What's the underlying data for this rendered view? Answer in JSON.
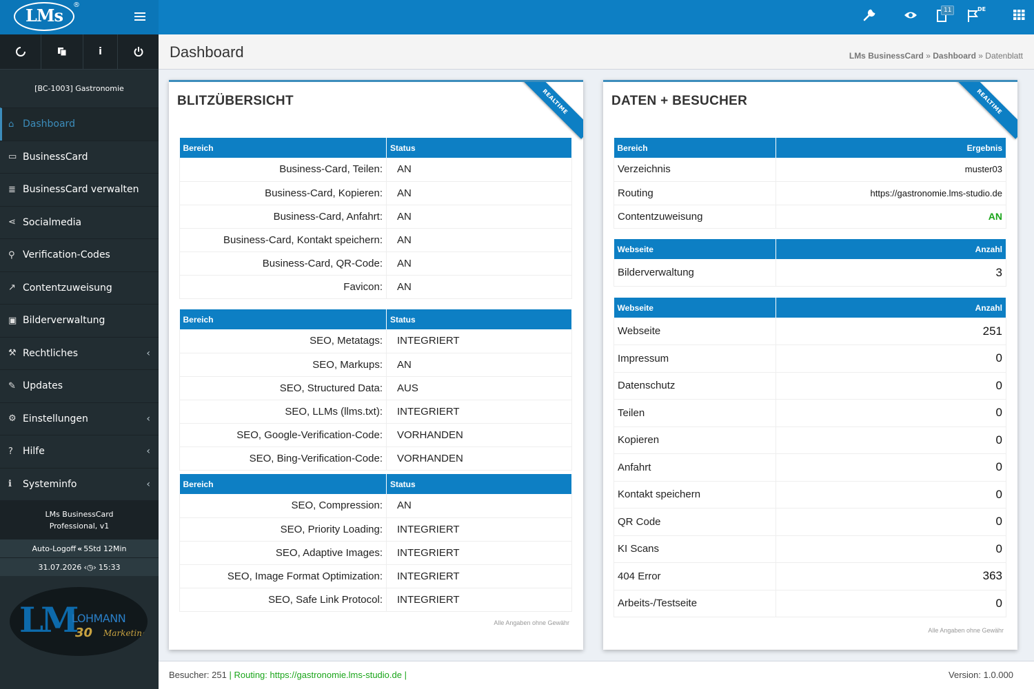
{
  "app": {
    "logo": "LMs",
    "logo_reg": "®",
    "badge_count": "11",
    "lang": "DE"
  },
  "sidebar": {
    "client": "[BC-1003] Gastronomie",
    "menu": [
      {
        "label": "Dashboard",
        "icon": "home-icon"
      },
      {
        "label": "BusinessCard",
        "icon": "id-card-icon"
      },
      {
        "label": "BusinessCard verwalten",
        "icon": "list-icon"
      },
      {
        "label": "Socialmedia",
        "icon": "share-icon"
      },
      {
        "label": "Verification-Codes",
        "icon": "search-icon"
      },
      {
        "label": "Contentzuweisung",
        "icon": "external-link-icon"
      },
      {
        "label": "Bilderverwaltung",
        "icon": "image-icon"
      },
      {
        "label": "Rechtliches",
        "icon": "gavel-icon"
      },
      {
        "label": "Updates",
        "icon": "wrench-icon"
      },
      {
        "label": "Einstellungen",
        "icon": "gears-icon"
      },
      {
        "label": "Hilfe",
        "icon": "question-icon"
      },
      {
        "label": "Systeminfo",
        "icon": "info-icon"
      }
    ],
    "product_line1": "LMs BusinessCard",
    "product_line2": "Professional, v1",
    "autologoff_label": "Auto-Logoff",
    "autologoff_value": "5Std 12Min",
    "date": "31.07.2026",
    "time": "15:33",
    "logo_lm": "LM",
    "logo_lohmann": "LOHMANN",
    "logo_30": "30",
    "logo_marketing": "Marketing"
  },
  "header": {
    "title": "Dashboard",
    "breadcrumb": [
      "LMs BusinessCard",
      "Dashboard",
      "Datenblatt"
    ]
  },
  "left_box": {
    "title": "BLITZÜBERSICHT",
    "ribbon": "REALTIME",
    "col1": "Bereich",
    "col2": "Status",
    "tables": [
      [
        {
          "label": "Business-Card, Teilen:",
          "status": "AN"
        },
        {
          "label": "Business-Card, Kopieren:",
          "status": "AN"
        },
        {
          "label": "Business-Card, Anfahrt:",
          "status": "AN"
        },
        {
          "label": "Business-Card, Kontakt speichern:",
          "status": "AN"
        },
        {
          "label": "Business-Card, QR-Code:",
          "status": "AN"
        },
        {
          "label": "Favicon:",
          "status": "AN"
        }
      ],
      [
        {
          "label": "SEO, Metatags:",
          "status": "INTEGRIERT"
        },
        {
          "label": "SEO, Markups:",
          "status": "AN"
        },
        {
          "label": "SEO, Structured Data:",
          "status": "AUS"
        },
        {
          "label": "SEO, LLMs (llms.txt):",
          "status": "INTEGRIERT"
        },
        {
          "label": "SEO, Google-Verification-Code:",
          "status": "VORHANDEN"
        },
        {
          "label": "SEO, Bing-Verification-Code:",
          "status": "VORHANDEN"
        }
      ],
      [
        {
          "label": "SEO, Compression:",
          "status": "AN"
        },
        {
          "label": "SEO, Priority Loading:",
          "status": "INTEGRIERT"
        },
        {
          "label": "SEO, Adaptive Images:",
          "status": "INTEGRIERT"
        },
        {
          "label": "SEO, Image Format Optimization:",
          "status": "INTEGRIERT"
        },
        {
          "label": "SEO, Safe Link Protocol:",
          "status": "INTEGRIERT"
        }
      ]
    ],
    "disclaimer": "Alle Angaben ohne Gewähr"
  },
  "right_box": {
    "title": "DATEN + BESUCHER",
    "ribbon": "REALTIME",
    "t1_col1": "Bereich",
    "t1_col2": "Ergebnis",
    "t1_rows": [
      {
        "label": "Verzeichnis",
        "value": "muster03"
      },
      {
        "label": "Routing",
        "value": "https://gastronomie.lms-studio.de"
      },
      {
        "label": "Contentzuweisung",
        "value": "AN"
      }
    ],
    "t2_col1": "Webseite",
    "t2_col2": "Anzahl",
    "t2_rows": [
      {
        "label": "Bilderverwaltung",
        "value": "3"
      }
    ],
    "t3_col1": "Webseite",
    "t3_col2": "Anzahl",
    "t3_rows": [
      {
        "label": "Webseite",
        "value": "251"
      },
      {
        "label": "Impressum",
        "value": "0"
      },
      {
        "label": "Datenschutz",
        "value": "0"
      },
      {
        "label": "Teilen",
        "value": "0"
      },
      {
        "label": "Kopieren",
        "value": "0"
      },
      {
        "label": "Anfahrt",
        "value": "0"
      },
      {
        "label": "Kontakt speichern",
        "value": "0"
      },
      {
        "label": "QR Code",
        "value": "0"
      },
      {
        "label": "KI Scans",
        "value": "0"
      },
      {
        "label": "404 Error",
        "value": "363"
      },
      {
        "label": "Arbeits-/Testseite",
        "value": "0"
      }
    ],
    "disclaimer": "Alle Angaben ohne Gewähr"
  },
  "footer": {
    "visitors": "Besucher: 251",
    "routing": "Routing: https://gastronomie.lms-studio.de",
    "version": "Version: 1.0.000"
  },
  "colors": {
    "accent": "#0d7fc4",
    "sidebar": "#222d32",
    "ok": "#1aa51a",
    "error": "#d02020"
  }
}
